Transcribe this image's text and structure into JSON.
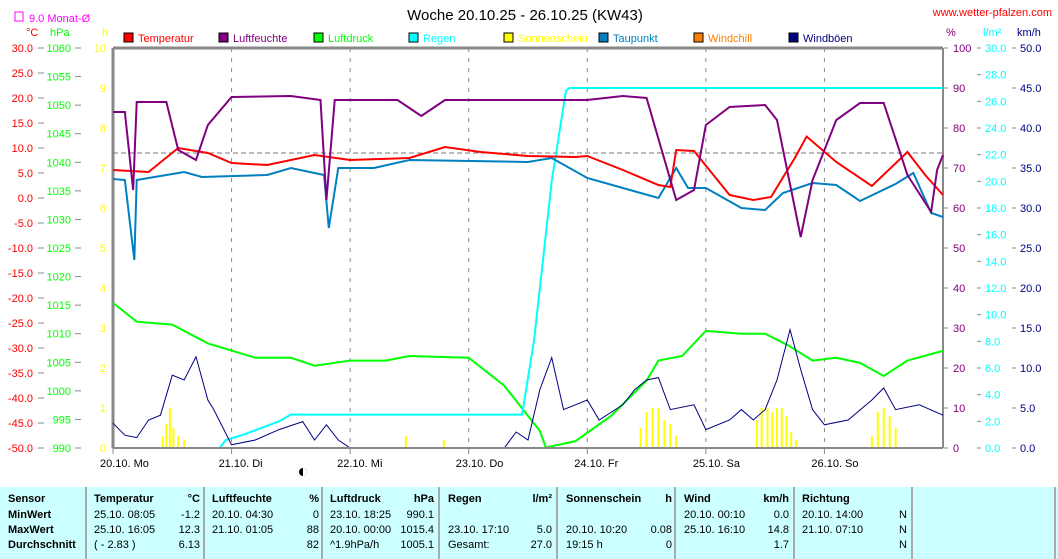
{
  "header": {
    "title": "Woche 20.10.25 - 26.10.25 (KW43)",
    "site": "www.wetter-pfalzen.com",
    "monthly_avg_label": "9.0 Monat-Ø"
  },
  "chart_data": {
    "type": "line",
    "title": "Woche 20.10.25 - 26.10.25 (KW43)",
    "x_labels": [
      "20.10. Mo",
      "21.10. Di",
      "22.10. Mi",
      "23.10. Do",
      "24.10. Fr",
      "25.10. Sa",
      "26.10. So"
    ],
    "x_unit": "days since 20.10. 00:00",
    "xlim": [
      0,
      7
    ],
    "axes": {
      "temp": {
        "unit": "°C",
        "min": -50,
        "max": 30,
        "step": 5,
        "color": "#ff0000"
      },
      "press": {
        "unit": "hPa",
        "min": 990,
        "max": 1060,
        "step": 5,
        "color": "#00ff00"
      },
      "sun": {
        "unit": "h",
        "min": 0,
        "max": 10,
        "step": 1,
        "color": "#ffff00"
      },
      "hum": {
        "unit": "%",
        "min": 0,
        "max": 100,
        "step": 10,
        "color": "#800080"
      },
      "rain": {
        "unit": "l/m²",
        "min": 0,
        "max": 30,
        "step": 2,
        "color": "#00ffff"
      },
      "wind": {
        "unit": "km/h",
        "min": 0,
        "max": 50,
        "step": 5,
        "color": "#000080"
      }
    },
    "monthly_avg_temp": 9.0,
    "legend": [
      {
        "name": "Temperatur",
        "color": "#ff0000"
      },
      {
        "name": "Luftfeuchte",
        "color": "#800080"
      },
      {
        "name": "Luftdruck",
        "color": "#00ff00"
      },
      {
        "name": "Regen",
        "color": "#00ffff"
      },
      {
        "name": "Sonnenschein",
        "color": "#ffff00"
      },
      {
        "name": "Taupunkt",
        "color": "#0080c0"
      },
      {
        "name": "Windchill",
        "color": "#ff8000"
      },
      {
        "name": "Windböen",
        "color": "#000080"
      }
    ],
    "series": [
      {
        "name": "Luftdruck",
        "axis": "press",
        "color": "#00ff00",
        "points": [
          [
            0,
            1015.4
          ],
          [
            0.2,
            1012.1
          ],
          [
            0.5,
            1011.6
          ],
          [
            0.8,
            1008.3
          ],
          [
            1.2,
            1005.8
          ],
          [
            1.5,
            1005.8
          ],
          [
            1.7,
            1004.4
          ],
          [
            2,
            1005.3
          ],
          [
            2.3,
            1005.3
          ],
          [
            2.5,
            1006.1
          ],
          [
            3,
            1005.8
          ],
          [
            3.3,
            1000.9
          ],
          [
            3.6,
            993
          ],
          [
            3.65,
            990.1
          ],
          [
            3.9,
            991.2
          ],
          [
            4.2,
            995.6
          ],
          [
            4.5,
            1001.8
          ],
          [
            4.6,
            1005.3
          ],
          [
            4.8,
            1006.1
          ],
          [
            5,
            1010.5
          ],
          [
            5.3,
            1010
          ],
          [
            5.5,
            1010
          ],
          [
            5.7,
            1007.9
          ],
          [
            5.9,
            1005.3
          ],
          [
            6.1,
            1005.8
          ],
          [
            6.3,
            1004.9
          ],
          [
            6.5,
            1002.6
          ],
          [
            6.7,
            1005.3
          ],
          [
            7,
            1007
          ]
        ]
      },
      {
        "name": "Regen",
        "axis": "rain",
        "color": "#00ffff",
        "points": [
          [
            0,
            0
          ],
          [
            0.9,
            0
          ],
          [
            0.95,
            0.6
          ],
          [
            1.1,
            1
          ],
          [
            1.4,
            2
          ],
          [
            1.5,
            2.5
          ],
          [
            3.45,
            2.5
          ],
          [
            3.55,
            8
          ],
          [
            3.7,
            20
          ],
          [
            3.82,
            26.8
          ],
          [
            3.85,
            27
          ],
          [
            7,
            27
          ]
        ]
      },
      {
        "name": "Taupunkt",
        "axis": "temp",
        "color": "#0080c0",
        "points": [
          [
            0,
            3.8
          ],
          [
            0.1,
            3.6
          ],
          [
            0.18,
            -12.4
          ],
          [
            0.2,
            3.6
          ],
          [
            0.6,
            5.2
          ],
          [
            0.75,
            4.2
          ],
          [
            1.3,
            4.6
          ],
          [
            1.5,
            6
          ],
          [
            1.78,
            4.6
          ],
          [
            1.82,
            -6
          ],
          [
            1.9,
            6
          ],
          [
            2.2,
            6
          ],
          [
            2.5,
            7.6
          ],
          [
            3.5,
            7.2
          ],
          [
            3.7,
            8
          ],
          [
            4,
            4
          ],
          [
            4.3,
            2
          ],
          [
            4.6,
            0
          ],
          [
            4.75,
            6
          ],
          [
            4.85,
            2
          ],
          [
            5,
            2
          ],
          [
            5.3,
            -2
          ],
          [
            5.5,
            -2.4
          ],
          [
            5.65,
            1
          ],
          [
            5.9,
            3
          ],
          [
            6.1,
            2.6
          ],
          [
            6.3,
            -0.6
          ],
          [
            6.6,
            2.8
          ],
          [
            6.75,
            5
          ],
          [
            6.9,
            -3
          ],
          [
            7,
            -3.8
          ]
        ]
      },
      {
        "name": "Temperatur",
        "axis": "temp",
        "color": "#ff0000",
        "points": [
          [
            0,
            5.6
          ],
          [
            0.3,
            5.2
          ],
          [
            0.55,
            10
          ],
          [
            0.8,
            9
          ],
          [
            1,
            7
          ],
          [
            1.3,
            6.6
          ],
          [
            1.7,
            8.6
          ],
          [
            2,
            7.6
          ],
          [
            2.5,
            8
          ],
          [
            2.8,
            10.2
          ],
          [
            3.1,
            9.2
          ],
          [
            3.5,
            8.4
          ],
          [
            3.9,
            8.2
          ],
          [
            4,
            8.4
          ],
          [
            4.3,
            5.6
          ],
          [
            4.6,
            2.6
          ],
          [
            4.7,
            2.2
          ],
          [
            4.75,
            9.6
          ],
          [
            4.9,
            9.4
          ],
          [
            5.2,
            0.6
          ],
          [
            5.4,
            -0.4
          ],
          [
            5.55,
            0.2
          ],
          [
            5.75,
            8
          ],
          [
            5.85,
            12.3
          ],
          [
            6.1,
            7.2
          ],
          [
            6.4,
            2.4
          ],
          [
            6.7,
            9.2
          ],
          [
            6.85,
            4.6
          ],
          [
            7,
            0.6
          ]
        ]
      },
      {
        "name": "Luftfeuchte",
        "axis": "hum",
        "color": "#800080",
        "points": [
          [
            0,
            84
          ],
          [
            0.1,
            84
          ],
          [
            0.17,
            64.5
          ],
          [
            0.2,
            86.5
          ],
          [
            0.45,
            86.5
          ],
          [
            0.55,
            74.5
          ],
          [
            0.7,
            72
          ],
          [
            0.8,
            80.75
          ],
          [
            1,
            87.75
          ],
          [
            1.5,
            88
          ],
          [
            1.75,
            87
          ],
          [
            1.8,
            62
          ],
          [
            1.87,
            87
          ],
          [
            2.4,
            87
          ],
          [
            2.6,
            83
          ],
          [
            2.8,
            87
          ],
          [
            4,
            87
          ],
          [
            4.3,
            88
          ],
          [
            4.5,
            87.5
          ],
          [
            4.75,
            62
          ],
          [
            4.9,
            64.5
          ],
          [
            5,
            80.75
          ],
          [
            5.2,
            85.25
          ],
          [
            5.5,
            85.75
          ],
          [
            5.6,
            82
          ],
          [
            5.8,
            52.75
          ],
          [
            5.9,
            67
          ],
          [
            6.1,
            82
          ],
          [
            6.3,
            86.25
          ],
          [
            6.5,
            86.25
          ],
          [
            6.7,
            68.25
          ],
          [
            6.9,
            59
          ],
          [
            6.95,
            69.5
          ],
          [
            7,
            73.25
          ]
        ]
      },
      {
        "name": "Windböen",
        "axis": "wind",
        "color": "#000080",
        "points": [
          [
            0,
            3.1
          ],
          [
            0.1,
            1.6
          ],
          [
            0.2,
            1.3
          ],
          [
            0.3,
            3.5
          ],
          [
            0.4,
            4.1
          ],
          [
            0.5,
            9.1
          ],
          [
            0.6,
            8.5
          ],
          [
            0.7,
            11.4
          ],
          [
            0.8,
            6
          ],
          [
            0.85,
            4.8
          ],
          [
            1,
            0.4
          ],
          [
            1.2,
            1
          ],
          [
            1.4,
            2.3
          ],
          [
            1.6,
            3.3
          ],
          [
            1.7,
            1
          ],
          [
            1.8,
            2.9
          ],
          [
            1.9,
            1
          ],
          [
            2,
            0
          ],
          [
            3.3,
            0
          ],
          [
            3.4,
            2
          ],
          [
            3.5,
            1
          ],
          [
            3.6,
            7.3
          ],
          [
            3.7,
            11.3
          ],
          [
            3.8,
            4.8
          ],
          [
            3.9,
            5.4
          ],
          [
            4,
            6
          ],
          [
            4.1,
            3.5
          ],
          [
            4.3,
            5.4
          ],
          [
            4.4,
            7.3
          ],
          [
            4.5,
            8.5
          ],
          [
            4.6,
            8.8
          ],
          [
            4.7,
            4.8
          ],
          [
            4.9,
            5.4
          ],
          [
            5,
            2.3
          ],
          [
            5.2,
            3.5
          ],
          [
            5.3,
            4.8
          ],
          [
            5.4,
            3.5
          ],
          [
            5.5,
            4.8
          ],
          [
            5.6,
            8.5
          ],
          [
            5.71,
            14.8
          ],
          [
            5.8,
            9.8
          ],
          [
            5.9,
            4.8
          ],
          [
            6,
            2.9
          ],
          [
            6.2,
            3.5
          ],
          [
            6.4,
            6
          ],
          [
            6.5,
            7.5
          ],
          [
            6.6,
            4.8
          ],
          [
            6.8,
            5.4
          ],
          [
            7,
            4.1
          ]
        ]
      }
    ],
    "sunshine_bars": {
      "axis": "sun",
      "color": "#ffff00",
      "points": [
        [
          0.42,
          0.3
        ],
        [
          0.45,
          0.6
        ],
        [
          0.48,
          1
        ],
        [
          0.51,
          0.5
        ],
        [
          0.55,
          0.3
        ],
        [
          0.6,
          0.2
        ],
        [
          2.47,
          0.3
        ],
        [
          2.79,
          0.2
        ],
        [
          4.45,
          0.5
        ],
        [
          4.5,
          0.9
        ],
        [
          4.55,
          1
        ],
        [
          4.6,
          1
        ],
        [
          4.65,
          0.7
        ],
        [
          4.7,
          0.6
        ],
        [
          4.75,
          0.3
        ],
        [
          5.43,
          0.7
        ],
        [
          5.47,
          1
        ],
        [
          5.52,
          1
        ],
        [
          5.56,
          0.9
        ],
        [
          5.6,
          1
        ],
        [
          5.64,
          1
        ],
        [
          5.68,
          0.8
        ],
        [
          5.72,
          0.4
        ],
        [
          5.76,
          0.2
        ],
        [
          6.4,
          0.3
        ],
        [
          6.45,
          0.9
        ],
        [
          6.5,
          1
        ],
        [
          6.55,
          0.8
        ],
        [
          6.6,
          0.5
        ]
      ]
    }
  },
  "table": {
    "headers": {
      "sensor": "Sensor",
      "temp": "Temperatur",
      "temp_unit": "°C",
      "hum": "Luftfeuchte",
      "hum_unit": "%",
      "press": "Luftdruck",
      "press_unit": "hPa",
      "rain": "Regen",
      "rain_unit": "l/m²",
      "sun": "Sonnenschein",
      "sun_unit": "h",
      "wind": "Wind",
      "wind_unit": "km/h",
      "dir": "Richtung"
    },
    "rows": [
      {
        "label": "MinWert",
        "temp_time": "25.10.  08:05",
        "temp_val": "-1.2",
        "hum_time": "20.10.  04:30",
        "hum_val": "0",
        "press_time": "23.10.  18:25",
        "press_val": "990.1",
        "rain_time": "",
        "rain_val": "",
        "sun_time": "",
        "sun_val": "",
        "wind_time": "20.10.  00:10",
        "wind_val": "0.0",
        "dir_time": "20.10.  14:00",
        "dir_val": "N"
      },
      {
        "label": "MaxWert",
        "temp_time": "25.10.  16:05",
        "temp_val": "12.3",
        "hum_time": "21.10.  01:05",
        "hum_val": "88",
        "press_time": "20.10.  00:00",
        "press_val": "1015.4",
        "rain_time": "23.10.  17:10",
        "rain_val": "5.0",
        "sun_time": "20.10.  10:20",
        "sun_val": "0.08",
        "wind_time": "25.10.  16:10",
        "wind_val": "14.8",
        "dir_time": "21.10.  07:10",
        "dir_val": "N"
      },
      {
        "label": "Durchschnitt",
        "temp_time": "( - 2.83 )",
        "temp_val": "6.13",
        "hum_time": "",
        "hum_val": "82",
        "press_time": "^1.9hPa/h",
        "press_val": "1005.1",
        "rain_time": "Gesamt:",
        "rain_val": "27.0",
        "sun_time": "19:15 h",
        "sun_val": "0",
        "wind_time": "",
        "wind_val": "1.7",
        "dir_time": "",
        "dir_val": "N"
      }
    ]
  }
}
